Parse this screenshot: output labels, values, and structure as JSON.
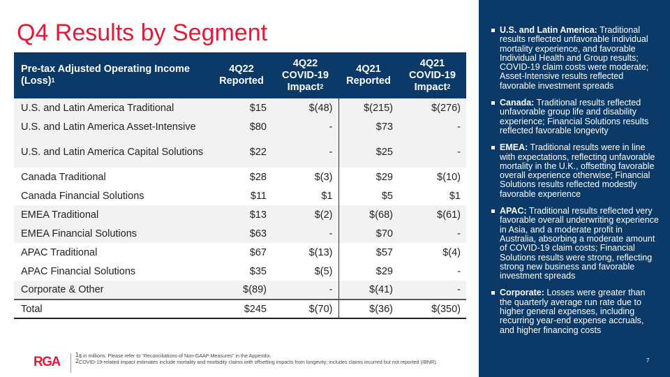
{
  "title": "Q4 Results by Segment",
  "table": {
    "headers": {
      "label": "Pre-tax Adjusted Operating Income (Loss)",
      "label_sup": "1",
      "c1": "4Q22 Reported",
      "c2": "4Q22 COVID-19 Impact",
      "c2_sup": "2",
      "c3": "4Q21 Reported",
      "c4": "4Q21 COVID-19 Impact",
      "c4_sup": "2"
    },
    "rows": [
      {
        "label": "U.S. and Latin America Traditional",
        "v": [
          "$15",
          "$(48)",
          "$(215)",
          "$(276)"
        ]
      },
      {
        "label": "U.S. and Latin America Asset-Intensive",
        "v": [
          "$80",
          "-",
          "$73",
          "-"
        ]
      },
      {
        "label": "U.S. and Latin America Capital Solutions",
        "v": [
          "$22",
          "-",
          "$25",
          "-"
        ]
      },
      {
        "label": "Canada Traditional",
        "v": [
          "$28",
          "$(3)",
          "$29",
          "$(10)"
        ]
      },
      {
        "label": "Canada Financial Solutions",
        "v": [
          "$11",
          "$1",
          "$5",
          "$1"
        ]
      },
      {
        "label": "EMEA Traditional",
        "v": [
          "$13",
          "$(2)",
          "$(68)",
          "$(61)"
        ]
      },
      {
        "label": "EMEA Financial Solutions",
        "v": [
          "$63",
          "-",
          "$70",
          "-"
        ]
      },
      {
        "label": "APAC Traditional",
        "v": [
          "$67",
          "$(13)",
          "$57",
          "$(4)"
        ]
      },
      {
        "label": "APAC Financial Solutions",
        "v": [
          "$35",
          "$(5)",
          "$29",
          "-"
        ]
      },
      {
        "label": "Corporate & Other",
        "v": [
          "$(89)",
          "-",
          "$(41)",
          "-"
        ]
      },
      {
        "label": "Total",
        "v": [
          "$245",
          "$(70)",
          "$(36)",
          "$(350)"
        ]
      }
    ]
  },
  "panel": {
    "bullets": [
      {
        "head": "U.S. and Latin America:",
        "text": " Traditional results reflected unfavorable individual mortality experience, and favorable Individual Health and Group results; COVID-19 claim costs were moderate; Asset-Intensive results reflected favorable investment spreads"
      },
      {
        "head": "Canada:",
        "text": " Traditional results reflected unfavorable group life and disability experience; Financial Solutions results reflected favorable longevity"
      },
      {
        "head": "EMEA:",
        "text": " Traditional results were in line with expectations, reflecting unfavorable mortality in the U.K., offsetting favorable overall experience otherwise; Financial Solutions results reflected modestly favorable experience"
      },
      {
        "head": "APAC:",
        "text": " Traditional results reflected very favorable overall underwriting experience in Asia, and a moderate profit in Australia, absorbing a moderate amount of COVID-19 claim costs; Financial Solutions results were strong, reflecting strong new business and favorable investment spreads"
      },
      {
        "head": "Corporate:",
        "text": " Losses were greater than the quarterly average run rate due to higher general expenses, including recurring year-end expense accruals, and higher financing costs"
      }
    ]
  },
  "footer": {
    "logo": "RGA",
    "note1_sup": "1",
    "note1": "$ in millions. Please refer to “Reconciliations of Non-GAAP Measures” in the Appendix.",
    "note2_sup": "2",
    "note2": "COVID-19-related impact estimates include mortality and morbidity claims with offsetting impacts from longevity; includes claims incurred but not reported (IBNR).",
    "page": "7"
  },
  "colors": {
    "accent": "#e31937",
    "navy": "#0b3a68",
    "row_shade": "#f2f2f2"
  }
}
